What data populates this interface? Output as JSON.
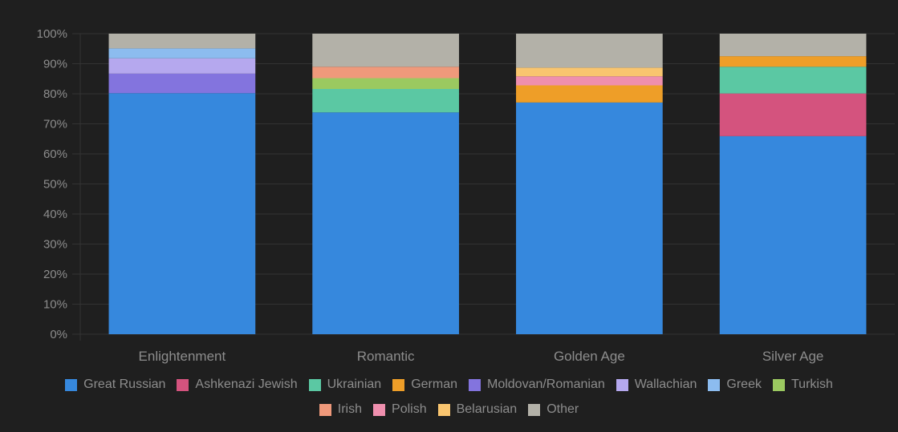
{
  "chart_data": {
    "type": "bar",
    "stacked": true,
    "categories": [
      "Enlightenment",
      "Romantic",
      "Golden Age",
      "Silver Age"
    ],
    "ylim": [
      0,
      100
    ],
    "yticks": [
      "0%",
      "10%",
      "20%",
      "30%",
      "40%",
      "50%",
      "60%",
      "70%",
      "80%",
      "90%",
      "100%"
    ],
    "grid": true,
    "legend_position": "bottom",
    "series": [
      {
        "name": "Great Russian",
        "color": "#3688dd",
        "values": [
          80.2,
          73.8,
          77.1,
          65.9
        ]
      },
      {
        "name": "Ashkenazi Jewish",
        "color": "#d4537e",
        "values": [
          0,
          0,
          0,
          14.2
        ]
      },
      {
        "name": "Ukrainian",
        "color": "#5bc8a3",
        "values": [
          0,
          7.8,
          0,
          8.9
        ]
      },
      {
        "name": "German",
        "color": "#ee9e28",
        "values": [
          0,
          0,
          5.7,
          3.5
        ]
      },
      {
        "name": "Moldovan/Romanian",
        "color": "#8374de",
        "values": [
          6.5,
          0,
          0,
          0
        ]
      },
      {
        "name": "Wallachian",
        "color": "#b5a8ee",
        "values": [
          5.1,
          0,
          0,
          0
        ]
      },
      {
        "name": "Greek",
        "color": "#8cbcef",
        "values": [
          3.3,
          0,
          0,
          0
        ]
      },
      {
        "name": "Turkish",
        "color": "#9bc960",
        "values": [
          0,
          3.6,
          0,
          0
        ]
      },
      {
        "name": "Irish",
        "color": "#ef997b",
        "values": [
          0,
          3.8,
          0,
          0
        ]
      },
      {
        "name": "Polish",
        "color": "#ef8fae",
        "values": [
          0,
          0,
          3.0,
          0
        ]
      },
      {
        "name": "Belarusian",
        "color": "#f9c56f",
        "values": [
          0,
          0,
          2.9,
          0
        ]
      },
      {
        "name": "Other",
        "color": "#b3b1a8",
        "values": [
          4.9,
          11.0,
          11.3,
          7.5
        ]
      }
    ]
  }
}
